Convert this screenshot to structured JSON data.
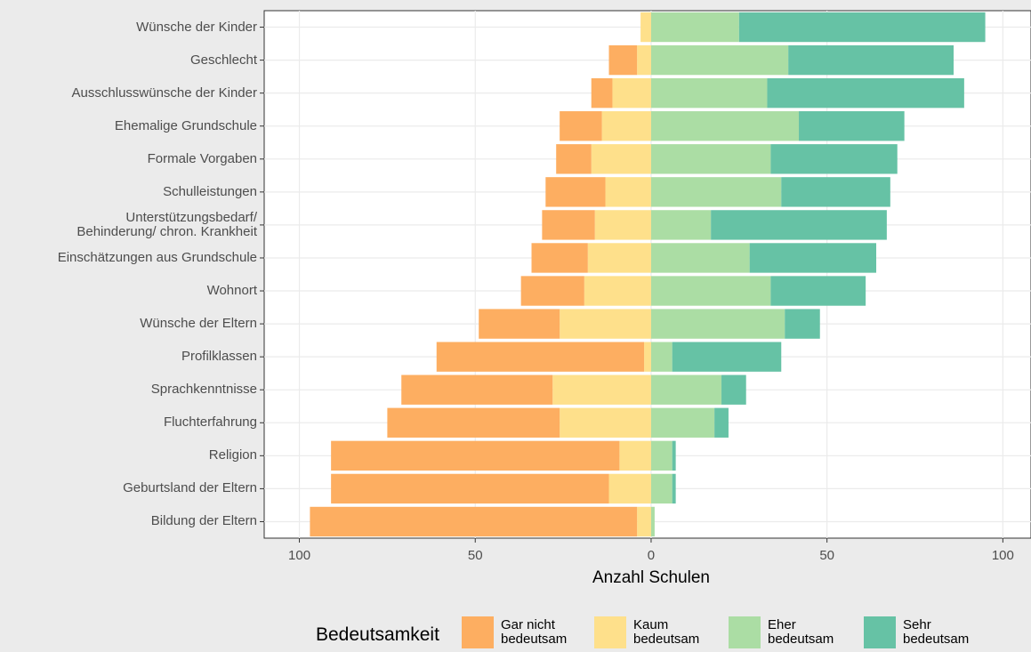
{
  "chart_data": {
    "type": "diverging_bar",
    "x_label": "Anzahl Schulen",
    "legend_title": "Bedeutsamkeit",
    "legend": "bottom",
    "grid": true,
    "categories": [
      "Wünsche der Kinder",
      "Geschlecht",
      "Ausschlusswünsche der Kinder",
      "Ehemalige Grundschule",
      "Formale Vorgaben",
      "Schulleistungen",
      "Unterstützungsbedarf/\nBehinderung/ chron. Krankheit",
      "Einschätzungen aus Grundschule",
      "Wohnort",
      "Wünsche der Eltern",
      "Profilklassen",
      "Sprachkenntnisse",
      "Fluchterfahrung",
      "Religion",
      "Geburtsland der Eltern",
      "Bildung der Eltern"
    ],
    "series": [
      {
        "name": "Gar nicht\nbedeutsam",
        "color": "#fdae61",
        "values": [
          0,
          -8,
          -6,
          -12,
          -10,
          -17,
          -15,
          -16,
          -18,
          -23,
          -59,
          -43,
          -49,
          -82,
          -79,
          -93
        ]
      },
      {
        "name": "Kaum\nbedeutsam",
        "color": "#fee08b",
        "values": [
          -3,
          -4,
          -11,
          -14,
          -17,
          -13,
          -16,
          -18,
          -19,
          -26,
          -2,
          -28,
          -26,
          -9,
          -12,
          -4
        ]
      },
      {
        "name": "Eher\nbedeutsam",
        "color": "#abdda4",
        "values": [
          25,
          39,
          33,
          42,
          34,
          37,
          17,
          28,
          34,
          38,
          6,
          20,
          18,
          6,
          6,
          1
        ]
      },
      {
        "name": "Sehr\nbedeutsam",
        "color": "#66c2a5",
        "values": [
          70,
          47,
          56,
          30,
          36,
          31,
          50,
          36,
          27,
          10,
          31,
          7,
          4,
          1,
          1,
          0
        ]
      }
    ],
    "xlim": [
      -110,
      108
    ],
    "xticks": [
      {
        "value": -100,
        "label": "100"
      },
      {
        "value": -50,
        "label": "50"
      },
      0,
      50,
      100
    ]
  }
}
